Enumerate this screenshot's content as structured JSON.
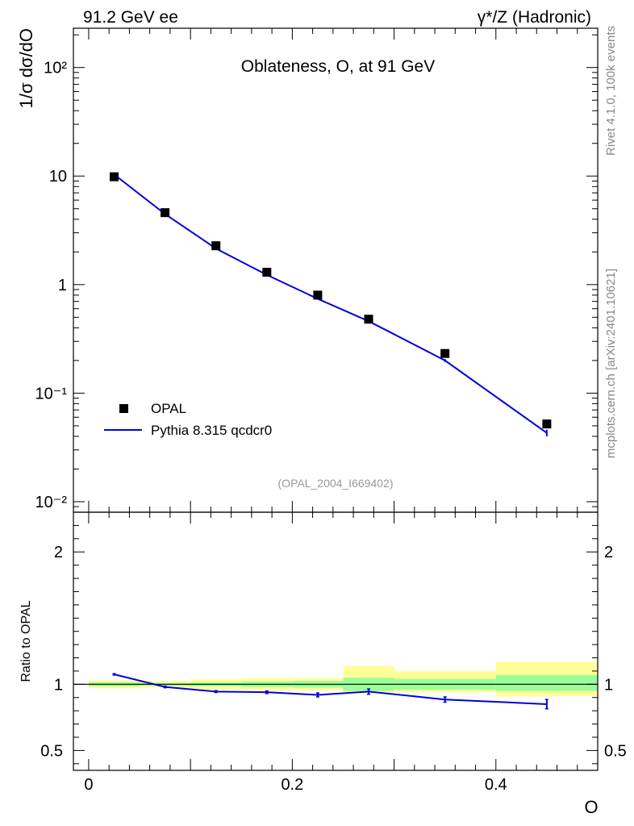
{
  "header": {
    "energy_label": "91.2 GeV ee",
    "process_label": "γ*/Z (Hadronic)"
  },
  "side_labels": {
    "rivet": "Rivet 4.1.0,  100k events",
    "mcplots": "mcplots.cern.ch [arXiv:2401.10621]"
  },
  "colors": {
    "data": "#000000",
    "mc": "#0000dd",
    "band_inner": "#99ff99",
    "band_outer": "#ffff99"
  },
  "chart_data": [
    {
      "type": "scatter",
      "title": "Oblateness, O, at 91 GeV",
      "ylabel": "1/σ  dσ/dO",
      "xlabel": "O",
      "yscale": "log",
      "xlim": [
        -0.015,
        0.5
      ],
      "ylim": [
        0.008,
        230
      ],
      "y_ticks": [
        {
          "value": 0.01,
          "label": "10⁻²"
        },
        {
          "value": 0.1,
          "label": "10⁻¹"
        },
        {
          "value": 1,
          "label": "1"
        },
        {
          "value": 10,
          "label": "10"
        },
        {
          "value": 100,
          "label": "10²"
        }
      ],
      "legend": {
        "position": "bottom-left",
        "entries": [
          {
            "name": "OPAL",
            "style": "marker"
          },
          {
            "name": "Pythia 8.315 qcdcr0",
            "style": "line"
          }
        ]
      },
      "analysis_id": "(OPAL_2004_I669402)",
      "series": [
        {
          "name": "OPAL",
          "x": [
            0.025,
            0.075,
            0.125,
            0.175,
            0.225,
            0.275,
            0.35,
            0.45
          ],
          "y": [
            9.85,
            4.6,
            2.28,
            1.3,
            0.8,
            0.48,
            0.232,
            0.052
          ]
        },
        {
          "name": "Pythia 8.315 qcdcr0",
          "x": [
            0.025,
            0.075,
            0.125,
            0.175,
            0.225,
            0.275,
            0.35,
            0.45
          ],
          "y": [
            10.35,
            4.47,
            2.15,
            1.23,
            0.74,
            0.46,
            0.2,
            0.043
          ],
          "yerr": [
            0.1,
            0.05,
            0.03,
            0.02,
            0.015,
            0.012,
            0.006,
            0.003
          ]
        }
      ]
    },
    {
      "type": "line",
      "ylabel": "Ratio to OPAL",
      "xlabel": "O",
      "xlim": [
        -0.015,
        0.5
      ],
      "ylim": [
        0.35,
        2.3
      ],
      "x_ticks": [
        {
          "value": 0,
          "label": "0"
        },
        {
          "value": 0.2,
          "label": "0.2"
        },
        {
          "value": 0.4,
          "label": "0.4"
        }
      ],
      "y_ticks": [
        {
          "value": 0.5,
          "label": "0.5"
        },
        {
          "value": 1,
          "label": "1"
        },
        {
          "value": 2,
          "label": "2"
        }
      ],
      "bands": [
        {
          "x0": 0.0,
          "x1": 0.05,
          "inner": [
            0.985,
            1.015
          ],
          "outer": [
            0.97,
            1.03
          ]
        },
        {
          "x0": 0.05,
          "x1": 0.1,
          "inner": [
            0.99,
            1.01
          ],
          "outer": [
            0.975,
            1.025
          ]
        },
        {
          "x0": 0.1,
          "x1": 0.15,
          "inner": [
            0.985,
            1.015
          ],
          "outer": [
            0.96,
            1.04
          ]
        },
        {
          "x0": 0.15,
          "x1": 0.2,
          "inner": [
            0.98,
            1.02
          ],
          "outer": [
            0.955,
            1.045
          ]
        },
        {
          "x0": 0.2,
          "x1": 0.25,
          "inner": [
            0.975,
            1.025
          ],
          "outer": [
            0.955,
            1.045
          ]
        },
        {
          "x0": 0.25,
          "x1": 0.3,
          "inner": [
            0.95,
            1.05
          ],
          "outer": [
            0.93,
            1.14
          ]
        },
        {
          "x0": 0.3,
          "x1": 0.4,
          "inner": [
            0.96,
            1.04
          ],
          "outer": [
            0.94,
            1.1
          ]
        },
        {
          "x0": 0.4,
          "x1": 0.5,
          "inner": [
            0.95,
            1.07
          ],
          "outer": [
            0.91,
            1.17
          ]
        }
      ],
      "series": [
        {
          "name": "Pythia 8.315 qcdcr0 / OPAL",
          "x": [
            0.025,
            0.075,
            0.125,
            0.175,
            0.225,
            0.275,
            0.35,
            0.45
          ],
          "y": [
            1.075,
            0.98,
            0.945,
            0.94,
            0.92,
            0.945,
            0.885,
            0.85
          ],
          "yerr": [
            0.005,
            0.006,
            0.007,
            0.01,
            0.015,
            0.02,
            0.02,
            0.035
          ]
        }
      ]
    }
  ]
}
